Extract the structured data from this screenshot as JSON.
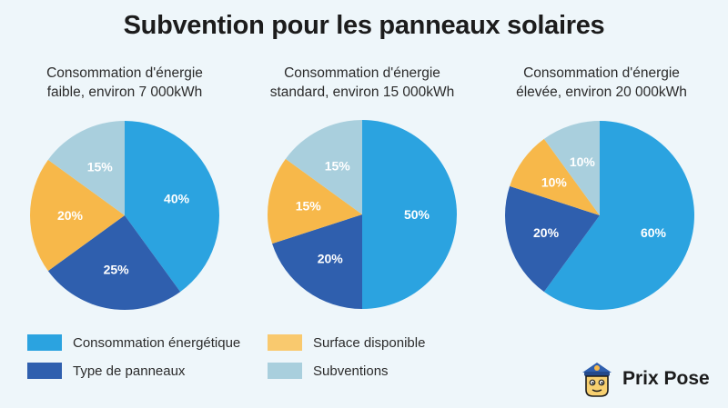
{
  "title": "Subvention pour les panneaux solaires",
  "colors": {
    "consommation": "#2ba3e0",
    "type": "#2f5fae",
    "surface": "#f7b84a",
    "subventions": "#a9cfdd",
    "label_light": "#ffffff",
    "label_dark": "#ffffff"
  },
  "chart_data": [
    {
      "type": "pie",
      "title_line1": "Consommation d'énergie",
      "title_line2": "faible, environ 7 000kWh",
      "slices": [
        {
          "name": "Consommation énergétique",
          "value": 40,
          "label": "40%"
        },
        {
          "name": "Type de panneaux",
          "value": 25,
          "label": "25%"
        },
        {
          "name": "Surface disponible",
          "value": 20,
          "label": "20%"
        },
        {
          "name": "Subventions",
          "value": 15,
          "label": "15%"
        }
      ]
    },
    {
      "type": "pie",
      "title_line1": "Consommation d'énergie",
      "title_line2": "standard, environ 15 000kWh",
      "slices": [
        {
          "name": "Consommation énergétique",
          "value": 50,
          "label": "50%"
        },
        {
          "name": "Type de panneaux",
          "value": 20,
          "label": "20%"
        },
        {
          "name": "Surface disponible",
          "value": 15,
          "label": "15%"
        },
        {
          "name": "Subventions",
          "value": 15,
          "label": "15%"
        }
      ]
    },
    {
      "type": "pie",
      "title_line1": "Consommation d'énergie",
      "title_line2": "élevée, environ 20 000kWh",
      "slices": [
        {
          "name": "Consommation énergétique",
          "value": 60,
          "label": "60%"
        },
        {
          "name": "Type de panneaux",
          "value": 20,
          "label": "20%"
        },
        {
          "name": "Surface disponible",
          "value": 10,
          "label": "10%"
        },
        {
          "name": "Subventions",
          "value": 10,
          "label": "10%"
        }
      ]
    }
  ],
  "legend": [
    {
      "label": "Consommation énergétique",
      "color": "#2ba3e0"
    },
    {
      "label": "Surface disponible",
      "color": "#f9c96e"
    },
    {
      "label": "Type de panneaux",
      "color": "#2f5fae"
    },
    {
      "label": "Subventions",
      "color": "#a9cfdd"
    }
  ],
  "brand": {
    "name": "Prix Pose"
  }
}
